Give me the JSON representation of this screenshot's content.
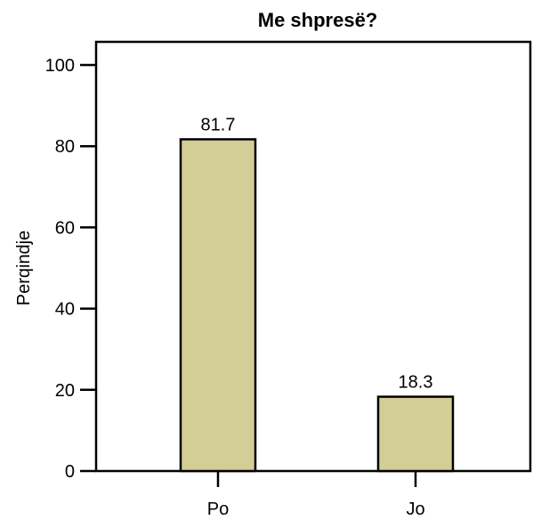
{
  "chart_data": {
    "type": "bar",
    "title": "Me shpresë?",
    "xlabel": "",
    "ylabel": "Perqindje",
    "categories": [
      "Po",
      "Jo"
    ],
    "values": [
      81.7,
      18.3
    ],
    "data_labels": [
      "81.7",
      "18.3"
    ],
    "ylim": [
      0,
      100
    ],
    "yticks": [
      0,
      20,
      40,
      60,
      80,
      100
    ],
    "grid": false,
    "colors": {
      "bar_fill": "#d3cd96",
      "bar_stroke": "#000000",
      "axis": "#000000"
    }
  }
}
